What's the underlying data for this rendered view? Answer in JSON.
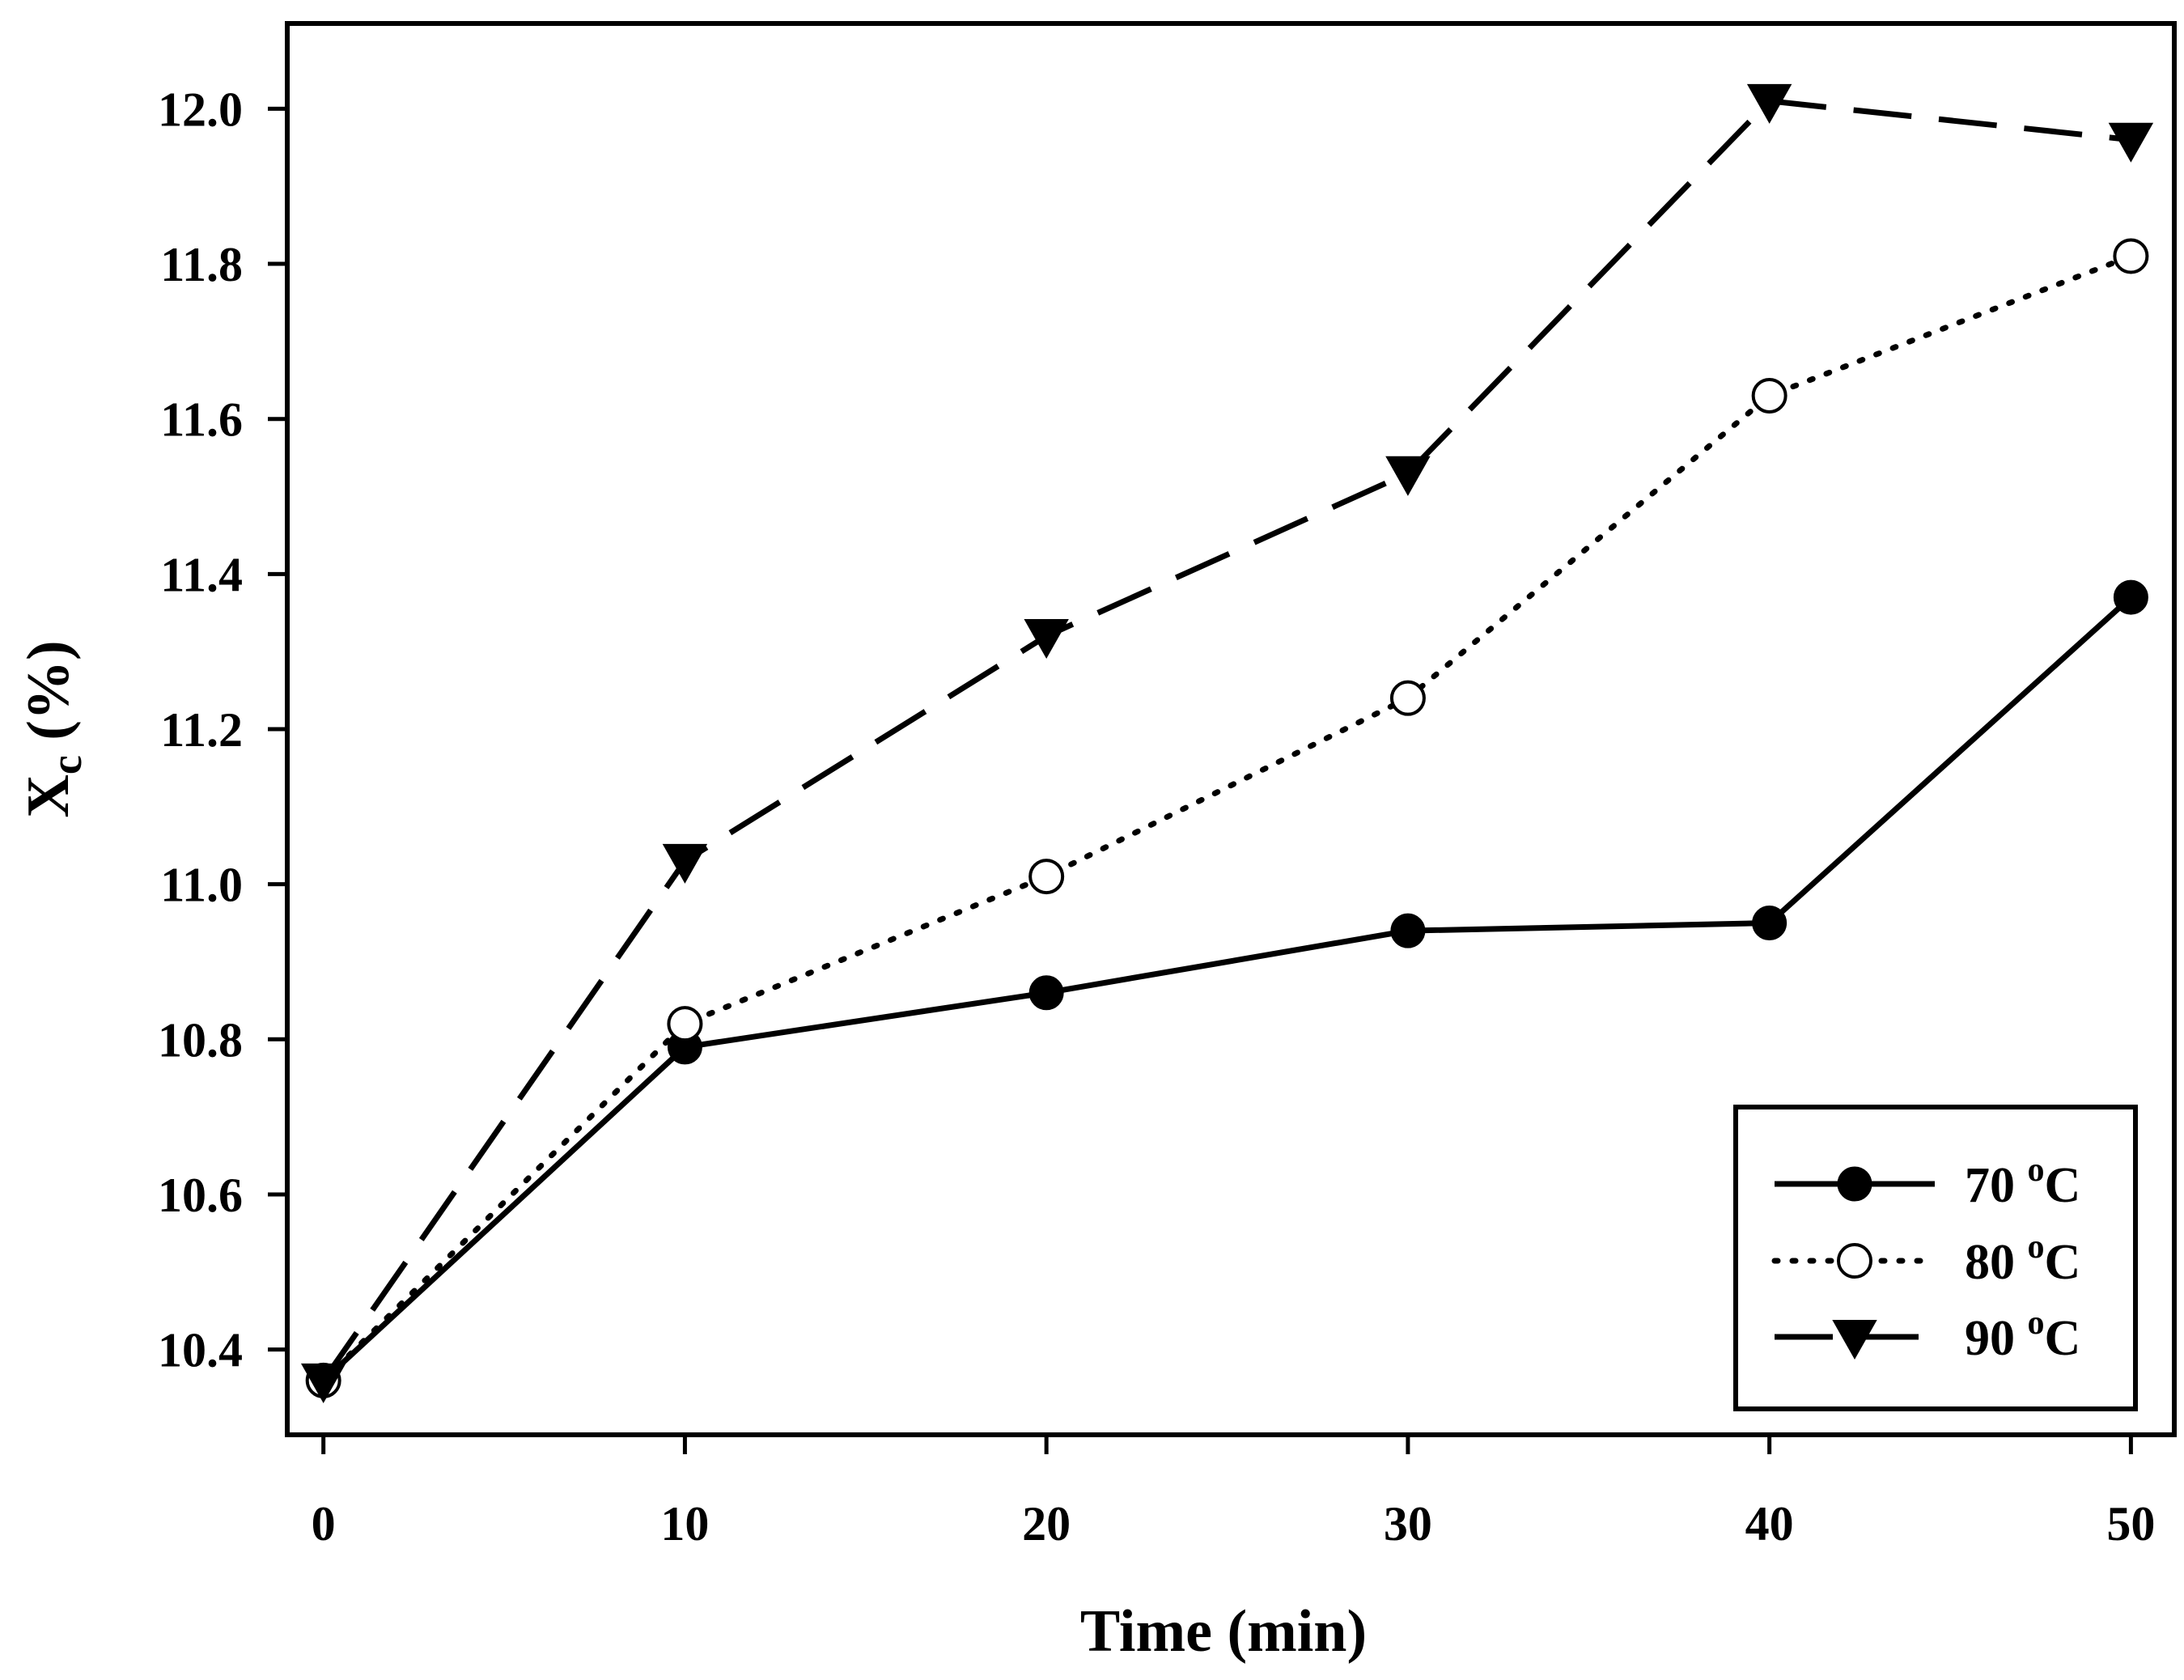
{
  "chart_data": {
    "type": "line",
    "title": "",
    "xlabel": "Time (min)",
    "ylabel_main": "X",
    "ylabel_sub": "c",
    "ylabel_suffix": " (%)",
    "xlim": [
      -1,
      51.2
    ],
    "ylim": [
      10.29,
      12.11
    ],
    "xticks": [
      0,
      10,
      20,
      30,
      40,
      50
    ],
    "xtick_labels": [
      "0",
      "10",
      "20",
      "30",
      "40",
      "50"
    ],
    "yticks": [
      10.4,
      10.6,
      10.8,
      11.0,
      11.2,
      11.4,
      11.6,
      11.8,
      12.0
    ],
    "ytick_labels": [
      "10.4",
      "10.6",
      "10.8",
      "11.0",
      "11.2",
      "11.4",
      "11.6",
      "11.8",
      "12.0"
    ],
    "grid": false,
    "legend_position": "bottom-right",
    "x": [
      0,
      10,
      20,
      30,
      40,
      50
    ],
    "series": [
      {
        "name": "70",
        "unit": "C",
        "sup": "o",
        "marker": "filled-circle",
        "line": "solid",
        "values": [
          10.36,
          10.79,
          10.86,
          10.94,
          10.95,
          11.37
        ]
      },
      {
        "name": "80",
        "unit": "C",
        "sup": "o",
        "marker": "open-circle",
        "line": "dotted",
        "values": [
          10.36,
          10.82,
          11.01,
          11.24,
          11.63,
          11.81
        ]
      },
      {
        "name": "90",
        "unit": "C",
        "sup": "o",
        "marker": "filled-triangle-down",
        "line": "dashed",
        "values": [
          10.36,
          11.03,
          11.32,
          11.53,
          12.01,
          11.96
        ]
      }
    ]
  }
}
